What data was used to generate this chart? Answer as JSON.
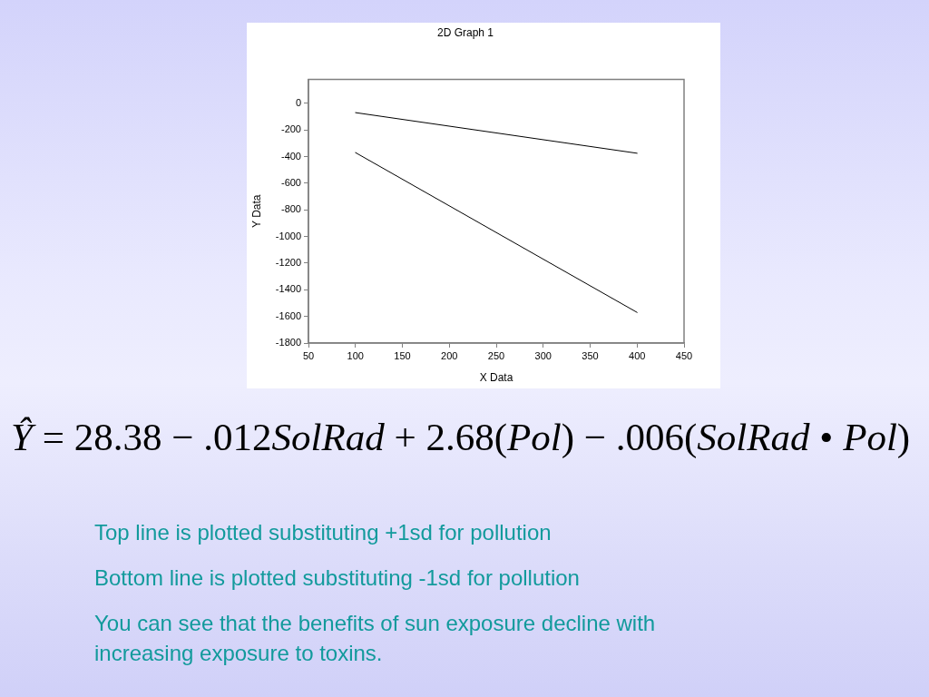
{
  "chart_data": {
    "type": "line",
    "title": "2D Graph 1",
    "xlabel": "X Data",
    "ylabel": "Y Data",
    "x": [
      100,
      400
    ],
    "series": [
      {
        "color": "#000000",
        "values": [
          -70,
          -375
        ]
      },
      {
        "color": "#000000",
        "values": [
          -370,
          -1570
        ]
      }
    ],
    "xlim": [
      50,
      450
    ],
    "xticks": [
      50,
      100,
      150,
      200,
      250,
      300,
      350,
      400,
      450
    ],
    "ylim": [
      -1800,
      180
    ],
    "yticks": [
      0,
      -200,
      -400,
      -600,
      -800,
      -1000,
      -1200,
      -1400,
      -1600,
      -1800
    ],
    "annotations": [
      "Ŷ = 28.38 − .012SolRad + 2.68(Pol) − .006(SolRad • Pol)",
      "Top line is plotted substituting +1sd for pollution",
      "Bottom line is plotted substituting -1sd for pollution",
      "You can see that the benefits of sun exposure decline with increasing exposure to toxins."
    ]
  }
}
